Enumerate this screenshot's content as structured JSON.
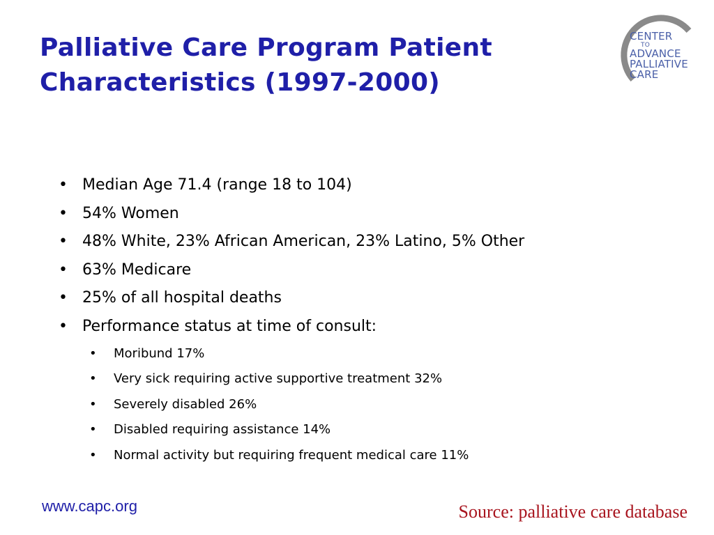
{
  "slide": {
    "title_lines": [
      "Palliative Care Program Patient",
      "Characteristics (1997-2000)"
    ],
    "bullets": [
      "Median Age 71.4 (range 18 to 104)",
      "54% Women",
      "48% White, 23% African American, 23% Latino, 5% Other",
      "63% Medicare",
      "25% of all hospital deaths",
      "Performance status at time of consult:"
    ],
    "sub_bullets": [
      "Moribund 17%",
      "Very sick requiring active supportive treatment 32%",
      "Severely disabled 26%",
      "Disabled requiring assistance 14%",
      "Normal activity but requiring frequent medical care 11%"
    ],
    "footer_url": "www.capc.org",
    "footer_source": "Source:  palliative care database"
  },
  "logo": {
    "lines": [
      "CENTER",
      "TO",
      "ADVANCE",
      "PALLIATIVE",
      "CARE"
    ],
    "arc_color": "#8a8a8a",
    "text_color": "#4a5fa8"
  },
  "colors": {
    "title": "#1f1fa8",
    "body_text": "#000000",
    "url": "#1f1fa8",
    "source": "#a8141e"
  }
}
